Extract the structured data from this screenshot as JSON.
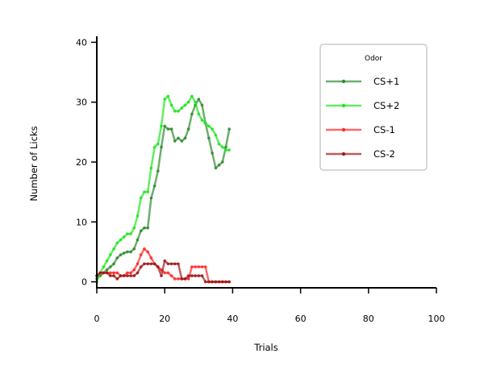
{
  "chart_data": {
    "type": "line",
    "title": "",
    "xlabel": "Trials",
    "ylabel": "Number of Licks",
    "xlim": [
      0,
      100
    ],
    "ylim": [
      -1,
      41
    ],
    "xticks": [
      0,
      20,
      40,
      60,
      80,
      100
    ],
    "yticks": [
      0,
      10,
      20,
      30,
      40
    ],
    "grid": false,
    "legend": {
      "title": "Odor",
      "placement": "top-right"
    },
    "series": [
      {
        "name": "CS+1",
        "color": "#2e8b2e",
        "x": [
          0,
          1,
          2,
          3,
          4,
          5,
          6,
          7,
          8,
          9,
          10,
          11,
          12,
          13,
          14,
          15,
          16,
          17,
          18,
          19,
          20,
          21,
          22,
          23,
          24,
          25,
          26,
          27,
          28,
          29,
          30,
          31,
          32,
          33,
          34,
          35,
          36,
          37,
          38,
          39
        ],
        "y": [
          0.5,
          1.0,
          1.5,
          2.0,
          2.5,
          3.0,
          4.0,
          4.5,
          4.8,
          5.0,
          5.0,
          5.5,
          7.0,
          8.5,
          9.0,
          9.0,
          14.0,
          16.0,
          18.5,
          22.5,
          26.0,
          25.5,
          25.5,
          23.5,
          24.0,
          23.5,
          24.0,
          25.5,
          28.0,
          29.5,
          30.5,
          29.5,
          26.5,
          24.0,
          21.5,
          19.0,
          19.5,
          20.0,
          22.5,
          25.5
        ]
      },
      {
        "name": "CS+2",
        "color": "#1fe51f",
        "x": [
          0,
          1,
          2,
          3,
          4,
          5,
          6,
          7,
          8,
          9,
          10,
          11,
          12,
          13,
          14,
          15,
          16,
          17,
          18,
          19,
          20,
          21,
          22,
          23,
          24,
          25,
          26,
          27,
          28,
          29,
          30,
          31,
          32,
          33,
          34,
          35,
          36,
          37,
          38,
          39
        ],
        "y": [
          0.0,
          1.5,
          2.5,
          3.5,
          4.5,
          5.5,
          6.5,
          7.0,
          7.5,
          8.0,
          8.0,
          9.0,
          11.0,
          14.0,
          15.0,
          15.0,
          19.0,
          22.5,
          23.0,
          26.0,
          30.5,
          31.0,
          29.5,
          28.5,
          28.5,
          29.0,
          29.5,
          30.0,
          31.0,
          30.0,
          28.0,
          27.0,
          26.5,
          26.0,
          25.5,
          24.5,
          23.0,
          22.5,
          22.0,
          22.0
        ]
      },
      {
        "name": "CS-1",
        "color": "#ff2a2a",
        "x": [
          0,
          1,
          2,
          3,
          4,
          5,
          6,
          7,
          8,
          9,
          10,
          11,
          12,
          13,
          14,
          15,
          16,
          17,
          18,
          19,
          20,
          21,
          22,
          23,
          24,
          25,
          26,
          27,
          28,
          29,
          30,
          31,
          32,
          33,
          34,
          35,
          36,
          37,
          38,
          39
        ],
        "y": [
          1.0,
          1.5,
          1.5,
          1.5,
          1.5,
          1.5,
          1.5,
          1.0,
          1.0,
          1.5,
          1.5,
          2.0,
          3.0,
          4.5,
          5.5,
          5.0,
          4.0,
          3.0,
          2.5,
          2.0,
          1.5,
          1.5,
          1.0,
          0.5,
          0.5,
          0.5,
          0.5,
          0.5,
          2.5,
          2.5,
          2.5,
          2.5,
          2.5,
          0.0,
          0.0,
          0.0,
          0.0,
          0.0,
          0.0,
          0.0
        ]
      },
      {
        "name": "CS-2",
        "color": "#a01818",
        "x": [
          0,
          1,
          2,
          3,
          4,
          5,
          6,
          7,
          8,
          9,
          10,
          11,
          12,
          13,
          14,
          15,
          16,
          17,
          18,
          19,
          20,
          21,
          22,
          23,
          24,
          25,
          26,
          27,
          28,
          29,
          30,
          31,
          32,
          33,
          34,
          35,
          36,
          37,
          38,
          39
        ],
        "y": [
          1.0,
          1.5,
          1.5,
          1.5,
          1.0,
          1.0,
          0.5,
          1.0,
          1.0,
          1.0,
          1.0,
          1.0,
          1.5,
          2.5,
          3.0,
          3.0,
          3.0,
          3.0,
          2.5,
          1.0,
          3.5,
          3.0,
          3.0,
          3.0,
          3.0,
          0.5,
          0.5,
          1.0,
          1.0,
          1.0,
          1.0,
          1.0,
          0.0,
          0.0,
          0.0,
          0.0,
          0.0,
          0.0,
          0.0,
          0.0
        ]
      }
    ]
  }
}
